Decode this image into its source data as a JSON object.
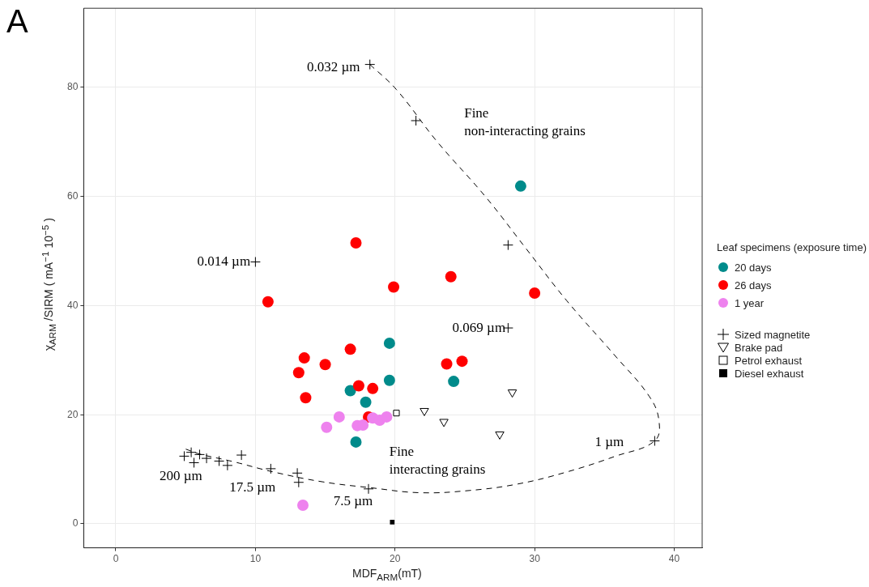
{
  "chart_data": {
    "type": "scatter",
    "xlabel": "MDF$_{ARM}$(mT)",
    "ylabel": "χ$_{ARM}$ /SIRM ( mA$^{−1}$ 10$^{−5}$ )",
    "legend_title": "Leaf specimens (exposure time)",
    "legend": "right",
    "grid": true,
    "xlim": [
      -2.3,
      42
    ],
    "xticks": [
      0,
      10,
      20,
      30,
      40
    ],
    "ylim": [
      -4.4,
      94.5
    ],
    "yticks": [
      0,
      20,
      40,
      60,
      80
    ],
    "annotations": [
      "A",
      {
        "text": "0.032 µm",
        "x": 18.2,
        "y": 84.2
      },
      {
        "text": "0.014 µm",
        "x": 10.0,
        "y": 48.0
      },
      {
        "text": "0.069 µm",
        "x": 28.1,
        "y": 35.9
      },
      {
        "text": "1 µm",
        "x": 38.6,
        "y": 15.2
      },
      {
        "text": "200 µm",
        "x": 4.9,
        "y": 12.4
      },
      {
        "text": "17.5 µm",
        "x": 13.1,
        "y": 7.6
      },
      {
        "text": "7.5 µm",
        "x": 18.1,
        "y": 6.4
      },
      "Fine\nnon-interacting grains",
      "Fine\ninteracting grains"
    ],
    "series": [
      {
        "type": "line",
        "line_style": "dashed",
        "color": "#000000",
        "x": [
          18.2,
          20.1,
          23.0,
          26.5,
          29.4,
          32.3,
          35.8,
          38.2,
          38.9,
          38.6,
          35.8,
          32.3,
          28.8,
          25.3,
          21.8,
          18.3,
          14.8,
          11.3,
          8.4,
          6.0,
          5.0
        ],
        "values": [
          84.2,
          79.6,
          70.1,
          59.9,
          50.4,
          40.9,
          30.7,
          23.4,
          19.0,
          15.2,
          12.4,
          9.5,
          7.3,
          6.1,
          5.7,
          6.6,
          7.7,
          9.5,
          11.4,
          12.8,
          13.7
        ]
      },
      {
        "name": "20 days",
        "marker": "circle",
        "color": "#008b8b",
        "x": [
          29.0,
          19.6,
          19.6,
          24.2,
          16.8,
          17.9,
          17.2
        ],
        "values": [
          61.9,
          33.1,
          26.3,
          26.1,
          24.4,
          22.3,
          15.0
        ]
      },
      {
        "name": "26 days",
        "marker": "circle",
        "color": "#ff0000",
        "x": [
          10.9,
          17.2,
          19.9,
          24.0,
          30.0,
          13.5,
          13.1,
          15.0,
          16.8,
          13.6,
          17.4,
          18.4,
          23.7,
          24.8,
          18.1
        ],
        "values": [
          40.7,
          51.5,
          43.4,
          45.3,
          42.3,
          30.4,
          27.7,
          29.2,
          32.0,
          23.1,
          25.3,
          24.8,
          29.3,
          29.8,
          19.6
        ]
      },
      {
        "name": "1 year",
        "marker": "circle",
        "color": "#ee82ee",
        "x": [
          15.1,
          16.0,
          17.3,
          17.7,
          18.4,
          18.9,
          19.4,
          13.4
        ],
        "values": [
          17.7,
          19.6,
          18.0,
          18.1,
          19.4,
          19.0,
          19.6,
          3.4
        ]
      },
      {
        "name": "Sized magnetite",
        "marker": "cross",
        "color": "#000000",
        "x": [
          18.2,
          21.5,
          10.0,
          28.1,
          28.1,
          38.6,
          18.1,
          13.0,
          13.1,
          11.1,
          9.0,
          8.0,
          7.4,
          6.5,
          6.0,
          5.4,
          4.9,
          5.6
        ],
        "values": [
          84.2,
          73.9,
          48.0,
          51.1,
          35.9,
          15.2,
          6.4,
          9.3,
          7.6,
          10.1,
          12.6,
          10.7,
          11.5,
          12.0,
          12.7,
          13.1,
          12.4,
          11.2
        ]
      },
      {
        "name": "Brake pad",
        "marker": "triangle-down-open",
        "color": "#000000",
        "x": [
          22.1,
          23.5,
          27.5,
          28.4
        ],
        "values": [
          20.7,
          18.7,
          16.4,
          24.1
        ]
      },
      {
        "name": "Petrol exhaust",
        "marker": "square-open",
        "color": "#000000",
        "x": [
          20.1
        ],
        "values": [
          20.3
        ]
      },
      {
        "name": "Diesel exhaust",
        "marker": "square",
        "color": "#000000",
        "x": [
          19.8
        ],
        "values": [
          0.3
        ]
      }
    ]
  }
}
